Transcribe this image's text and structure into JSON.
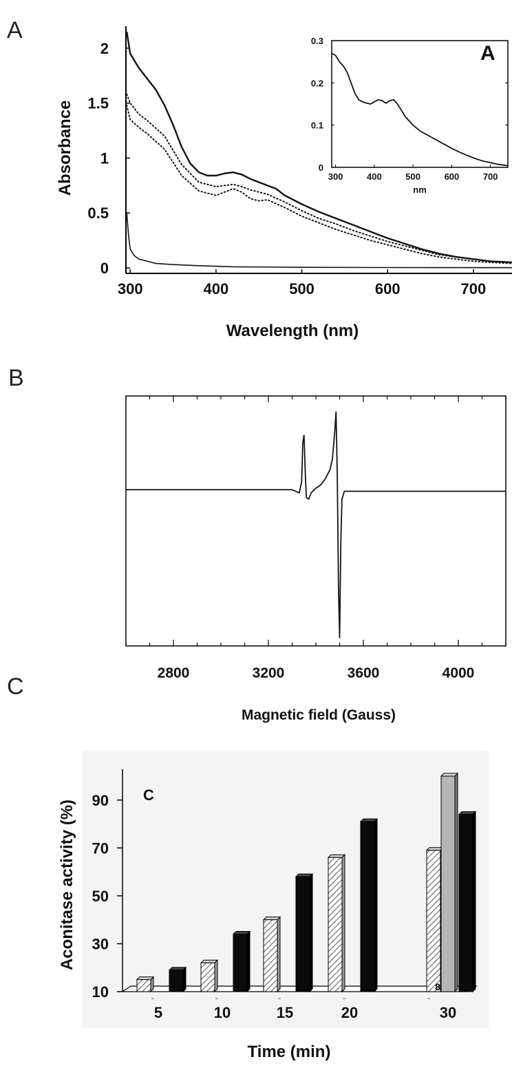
{
  "panels": {
    "a": {
      "letter": "A"
    },
    "b": {
      "letter": "B"
    },
    "c": {
      "letter": "C"
    }
  },
  "chart_data": [
    {
      "id": "A",
      "type": "line",
      "xlabel": "Wavelength (nm)",
      "ylabel": "Absorbance",
      "xlim": [
        295,
        745
      ],
      "ylim": [
        -0.05,
        2.2
      ],
      "xticks": [
        300,
        400,
        500,
        600,
        700
      ],
      "yticks": [
        0,
        0.5,
        1,
        1.5,
        2
      ],
      "ytick_labels": [
        "0",
        "0.5",
        "1",
        "1.5",
        "2"
      ],
      "series": [
        {
          "style": "solid",
          "x": [
            296,
            300,
            310,
            320,
            330,
            340,
            350,
            360,
            370,
            380,
            390,
            400,
            410,
            420,
            430,
            440,
            450,
            460,
            470,
            480,
            500,
            520,
            540,
            560,
            580,
            600,
            620,
            640,
            660,
            680,
            700,
            720,
            745
          ],
          "y": [
            2.15,
            1.95,
            1.82,
            1.72,
            1.62,
            1.48,
            1.3,
            1.1,
            0.95,
            0.87,
            0.84,
            0.84,
            0.86,
            0.87,
            0.85,
            0.81,
            0.78,
            0.75,
            0.72,
            0.66,
            0.58,
            0.51,
            0.45,
            0.39,
            0.33,
            0.27,
            0.22,
            0.17,
            0.13,
            0.1,
            0.08,
            0.06,
            0.05
          ]
        },
        {
          "style": "dotted",
          "x": [
            296,
            300,
            310,
            320,
            340,
            360,
            380,
            400,
            410,
            420,
            430,
            440,
            450,
            460,
            480,
            500,
            520,
            540,
            560,
            580,
            600,
            620,
            640,
            660,
            680,
            700,
            720,
            745
          ],
          "y": [
            1.58,
            1.5,
            1.4,
            1.34,
            1.2,
            0.94,
            0.78,
            0.74,
            0.75,
            0.76,
            0.74,
            0.71,
            0.69,
            0.67,
            0.6,
            0.52,
            0.45,
            0.4,
            0.34,
            0.29,
            0.24,
            0.2,
            0.16,
            0.12,
            0.1,
            0.08,
            0.06,
            0.05
          ]
        },
        {
          "style": "dotted",
          "x": [
            296,
            300,
            310,
            320,
            340,
            360,
            380,
            400,
            410,
            420,
            430,
            440,
            450,
            460,
            480,
            500,
            520,
            540,
            560,
            580,
            600,
            620,
            640,
            660,
            680,
            700,
            720,
            745
          ],
          "y": [
            1.48,
            1.35,
            1.28,
            1.22,
            1.08,
            0.84,
            0.7,
            0.66,
            0.69,
            0.72,
            0.69,
            0.63,
            0.61,
            0.62,
            0.55,
            0.47,
            0.41,
            0.35,
            0.3,
            0.25,
            0.21,
            0.17,
            0.13,
            0.1,
            0.08,
            0.06,
            0.05,
            0.04
          ]
        },
        {
          "style": "solid-thin",
          "x": [
            296,
            298,
            300,
            305,
            310,
            320,
            330,
            350,
            380,
            420,
            500,
            600,
            745
          ],
          "y": [
            0.5,
            0.3,
            0.17,
            0.11,
            0.08,
            0.06,
            0.04,
            0.03,
            0.02,
            0.01,
            0.005,
            0.003,
            0.002
          ]
        }
      ],
      "inset": {
        "letter": "A",
        "xlabel": "nm",
        "xlim": [
          290,
          745
        ],
        "ylim": [
          0,
          0.3
        ],
        "xticks": [
          300,
          400,
          500,
          600,
          700
        ],
        "yticks": [
          0,
          0.1,
          0.2,
          0.3
        ],
        "ytick_labels": [
          "0",
          "0.1",
          "0.2",
          "0.3"
        ],
        "x": [
          290,
          300,
          310,
          320,
          330,
          340,
          350,
          360,
          370,
          380,
          390,
          400,
          410,
          420,
          430,
          440,
          450,
          460,
          470,
          480,
          500,
          520,
          540,
          560,
          580,
          600,
          620,
          640,
          660,
          680,
          700,
          720,
          745
        ],
        "y": [
          0.27,
          0.265,
          0.25,
          0.24,
          0.225,
          0.2,
          0.175,
          0.16,
          0.155,
          0.152,
          0.15,
          0.155,
          0.16,
          0.158,
          0.152,
          0.158,
          0.16,
          0.15,
          0.135,
          0.12,
          0.1,
          0.085,
          0.075,
          0.065,
          0.055,
          0.045,
          0.036,
          0.028,
          0.021,
          0.015,
          0.011,
          0.007,
          0.004
        ]
      }
    },
    {
      "id": "B",
      "type": "line",
      "xlabel": "Magnetic field (Gauss)",
      "ylabel": "",
      "xlim": [
        2600,
        4200
      ],
      "ylim": [
        -1.0,
        0.6
      ],
      "xticks": [
        2800,
        3200,
        3600,
        4000
      ],
      "series": [
        {
          "x": [
            2600,
            2800,
            3000,
            3200,
            3300,
            3330,
            3340,
            3345,
            3350,
            3355,
            3360,
            3370,
            3380,
            3400,
            3420,
            3440,
            3460,
            3470,
            3480,
            3485,
            3490,
            3495,
            3500,
            3505,
            3510,
            3520,
            3530,
            3600,
            3800,
            4000,
            4200
          ],
          "y": [
            0,
            0,
            0,
            0,
            0,
            -0.02,
            0.05,
            0.3,
            0.35,
            0.12,
            -0.05,
            -0.06,
            -0.02,
            0.01,
            0.03,
            0.07,
            0.13,
            0.2,
            0.38,
            0.5,
            0.1,
            -0.6,
            -0.95,
            -0.35,
            -0.06,
            -0.01,
            -0.01,
            -0.01,
            -0.01,
            -0.01,
            -0.01
          ]
        }
      ]
    },
    {
      "id": "C",
      "type": "bar",
      "title": "C",
      "xlabel": "Time (min)",
      "ylabel": "Aconitase activity (%)",
      "ylim": [
        10,
        100
      ],
      "yticks": [
        10,
        30,
        50,
        70,
        90
      ],
      "categories": [
        "5",
        "10",
        "15",
        "20",
        "30"
      ],
      "series": [
        {
          "fill": "hatched",
          "values": [
            15,
            22,
            40,
            66,
            69
          ]
        },
        {
          "fill": "gray",
          "values": [
            null,
            null,
            null,
            null,
            100
          ]
        },
        {
          "fill": "black",
          "values": [
            19,
            34,
            58,
            81,
            84
          ]
        }
      ],
      "annotation": "8"
    }
  ]
}
